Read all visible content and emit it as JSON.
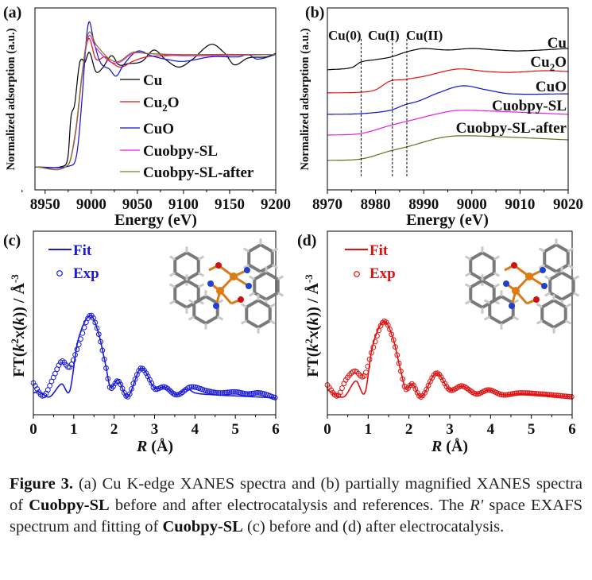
{
  "caption": {
    "label": "Figure 3.",
    "t1": " (a) Cu K-edge XANES spectra and (b) partially magnified XANES spectra of ",
    "b1": "Cuobpy-SL",
    "t2": " before and after electrocatalysis and references. The ",
    "i1": "R'",
    "t3": " space EXAFS spectrum and fitting of ",
    "b2": "Cuobpy-SL",
    "t4": " (c) before and (d) after electrocatalysis."
  },
  "chart_data": [
    {
      "panel": "(a)",
      "type": "line",
      "xlabel": "Energy (eV)",
      "ylabel": "Normalized adsorption (a.u.)",
      "xlim": [
        8939,
        9200
      ],
      "ylim": [
        -0.2,
        1.4
      ],
      "xticks": [
        8950,
        9000,
        9050,
        9100,
        9150,
        9200
      ],
      "legend": "center-right",
      "series": [
        {
          "name": "Cu",
          "color": "#000000",
          "x": [
            8939,
            8970,
            8975,
            8978,
            8982,
            8987,
            8990,
            8993,
            8998,
            9005,
            9012,
            9022,
            9030,
            9040,
            9055,
            9068,
            9080,
            9095,
            9110,
            9130,
            9145,
            9155,
            9170,
            9190,
            9200
          ],
          "y": [
            0,
            0.01,
            0.1,
            0.44,
            0.55,
            0.9,
            0.95,
            0.92,
            1.01,
            0.84,
            0.87,
            0.98,
            0.9,
            0.91,
            0.93,
            1.03,
            0.95,
            0.88,
            0.95,
            1.08,
            1.0,
            0.9,
            0.96,
            0.97,
            1.0
          ]
        },
        {
          "name": "Cu2O",
          "color": "#e01010",
          "x": [
            8939,
            8975,
            8983,
            8990,
            8997,
            9005,
            9015,
            9022,
            9032,
            9045,
            9060,
            9080,
            9120,
            9200
          ],
          "y": [
            0,
            0.02,
            0.3,
            0.8,
            1.13,
            0.95,
            0.97,
            0.92,
            0.88,
            0.93,
            0.97,
            0.98,
            0.99,
            0.99
          ]
        },
        {
          "name": "CuO",
          "color": "#1010c8",
          "x": [
            8939,
            8980,
            8985,
            8990,
            8995,
            8998,
            9003,
            9010,
            9020,
            9027,
            9035,
            9050,
            9065,
            9080,
            9100,
            9130,
            9160,
            9170,
            9180,
            9200
          ],
          "y": [
            0,
            0.02,
            0.15,
            0.6,
            1.15,
            1.28,
            1.1,
            0.92,
            0.86,
            0.8,
            0.9,
            1.02,
            0.98,
            0.95,
            0.93,
            0.97,
            0.97,
            0.99,
            0.95,
            0.99
          ]
        },
        {
          "name": "Cuobpy-SL",
          "color": "#e020e0",
          "x": [
            8939,
            8975,
            8983,
            8990,
            8997,
            9005,
            9020,
            9030,
            9045,
            9060,
            9100,
            9200
          ],
          "y": [
            0,
            0.02,
            0.3,
            0.8,
            1.15,
            1.05,
            0.93,
            0.92,
            1.0,
            1.0,
            0.98,
            0.99
          ]
        },
        {
          "name": "Cuobpy-SL-after",
          "color": "#7a7a20",
          "x": [
            8939,
            8975,
            8983,
            8990,
            8997,
            9005,
            9020,
            9030,
            9045,
            9060,
            9100,
            9200
          ],
          "y": [
            0,
            0.02,
            0.32,
            0.82,
            1.18,
            1.08,
            0.95,
            0.93,
            1.01,
            1.0,
            0.99,
            0.99
          ]
        }
      ]
    },
    {
      "panel": "(b)",
      "type": "line",
      "xlabel": "Energy (eV)",
      "ylabel": "Normalized adsorption (a.u.)",
      "xlim": [
        8970,
        9020
      ],
      "ylim": [
        0,
        10
      ],
      "xticks": [
        8970,
        8980,
        8990,
        9000,
        9010,
        9020
      ],
      "annotations": [
        {
          "text": "Cu(0)",
          "x": 8977
        },
        {
          "text": "Cu(I)",
          "x": 8983.5
        },
        {
          "text": "Cu(II)",
          "x": 8986.5
        }
      ],
      "series": [
        {
          "name": "Cu",
          "color": "#000000",
          "x": [
            8970,
            8975,
            8977,
            8980,
            8983,
            8986,
            8988,
            8990,
            8995,
            9000,
            9005,
            9010,
            9020
          ],
          "y": [
            6.6,
            6.72,
            7.03,
            7.16,
            7.29,
            7.55,
            7.69,
            7.77,
            7.69,
            7.77,
            7.69,
            7.64,
            7.77
          ]
        },
        {
          "name": "Cu2O",
          "color": "#e01010",
          "x": [
            8970,
            8977,
            8980,
            8983,
            8986,
            8990,
            8997,
            9003,
            9008,
            9015,
            9020
          ],
          "y": [
            5.33,
            5.37,
            5.5,
            5.98,
            6.07,
            6.24,
            6.64,
            6.51,
            6.46,
            6.55,
            6.51
          ]
        },
        {
          "name": "CuO",
          "color": "#1010c8",
          "x": [
            8970,
            8977,
            8983,
            8986,
            8989,
            8993,
            8998,
            9003,
            9008,
            9020
          ],
          "y": [
            4.15,
            4.19,
            4.37,
            4.67,
            4.89,
            5.33,
            5.72,
            5.5,
            5.28,
            5.28
          ]
        },
        {
          "name": "Cuobpy-SL",
          "color": "#e020e0",
          "x": [
            8970,
            8977,
            8983,
            8987,
            8993,
            8997,
            9005,
            9020
          ],
          "y": [
            3.01,
            3.1,
            3.54,
            3.8,
            4.19,
            4.37,
            4.32,
            4.15
          ]
        },
        {
          "name": "Cuobpy-SL-after",
          "color": "#6b6b20",
          "x": [
            8970,
            8977,
            8983,
            8987,
            8993,
            8997,
            9005,
            9020
          ],
          "y": [
            1.62,
            1.7,
            2.14,
            2.4,
            2.84,
            2.97,
            2.93,
            2.75
          ]
        }
      ]
    },
    {
      "panel": "(c)",
      "type": "line",
      "xlabel": "R (Å)",
      "ylabel": "FT(k2x(k)) / Å-3",
      "xlim": [
        0,
        6
      ],
      "ylim": [
        0,
        18.5
      ],
      "xticks": [
        0,
        1,
        2,
        3,
        4,
        5,
        6
      ],
      "legend": "top-left",
      "series": [
        {
          "name": "Fit",
          "style": "line",
          "color": "#1a1ad8",
          "x": [
            0,
            0.15,
            0.4,
            0.7,
            0.9,
            1.1,
            1.4,
            1.6,
            1.8,
            1.9,
            2.1,
            2.33,
            2.67,
            3.0,
            3.25,
            3.55,
            3.8,
            4.0,
            4.5,
            5.0,
            6.0
          ],
          "y": [
            2.2,
            2.3,
            1.8,
            3.1,
            2.4,
            7.4,
            10,
            8.4,
            4.8,
            2.8,
            3.5,
            1.8,
            4.7,
            2.7,
            2.8,
            2.0,
            2.6,
            2.2,
            2.0,
            1.9,
            1.7
          ]
        },
        {
          "name": "Exp",
          "style": "circles",
          "color": "#1a1ad8",
          "x": [
            0,
            0.25,
            0.5,
            0.7,
            0.9,
            1.1,
            1.4,
            1.6,
            1.8,
            1.9,
            2.1,
            2.33,
            2.5,
            2.67,
            2.9,
            3.0,
            3.25,
            3.55,
            3.9,
            4.3,
            4.6,
            5.0,
            5.3,
            5.6,
            6.0
          ],
          "y": [
            3.2,
            1.9,
            3.8,
            5.4,
            4.8,
            6.8,
            10,
            8.4,
            4.7,
            2.7,
            3.4,
            1.8,
            3.4,
            4.7,
            3.4,
            2.6,
            2.8,
            2.0,
            2.8,
            2.4,
            2.2,
            2.3,
            2.1,
            2.2,
            1.7
          ]
        }
      ]
    },
    {
      "panel": "(d)",
      "type": "line",
      "xlabel": "R (Å)",
      "ylabel": "FT(k2x(k)) / Å-3",
      "xlim": [
        0,
        6
      ],
      "ylim": [
        0,
        18.5
      ],
      "xticks": [
        0,
        1,
        2,
        3,
        4,
        5,
        6
      ],
      "legend": "top-left",
      "series": [
        {
          "name": "Fit",
          "style": "line",
          "color": "#e01010",
          "x": [
            0,
            0.4,
            0.7,
            0.92,
            1.1,
            1.38,
            1.6,
            1.8,
            1.92,
            2.08,
            2.3,
            2.67,
            3.0,
            3.3,
            3.65,
            3.95,
            4.3,
            4.7,
            5.2,
            6.0
          ],
          "y": [
            2.5,
            1.8,
            3.4,
            2.2,
            6.8,
            9.4,
            7.8,
            4.4,
            2.6,
            3.1,
            1.8,
            4.2,
            2.5,
            2.9,
            2.1,
            2.5,
            2.0,
            2.1,
            2.0,
            1.8
          ]
        },
        {
          "name": "Exp",
          "style": "circles",
          "color": "#e01010",
          "x": [
            0,
            0.25,
            0.45,
            0.67,
            0.9,
            1.1,
            1.38,
            1.6,
            1.8,
            1.92,
            2.08,
            2.3,
            2.67,
            3.0,
            3.3,
            3.65,
            3.95,
            4.3,
            4.7,
            5.2,
            6.0
          ],
          "y": [
            3.0,
            1.9,
            3.5,
            4.4,
            3.9,
            6.5,
            9.4,
            7.8,
            4.4,
            2.6,
            3.1,
            1.8,
            4.2,
            2.5,
            2.9,
            2.1,
            2.5,
            2.0,
            2.2,
            2.1,
            1.8
          ]
        }
      ]
    }
  ]
}
